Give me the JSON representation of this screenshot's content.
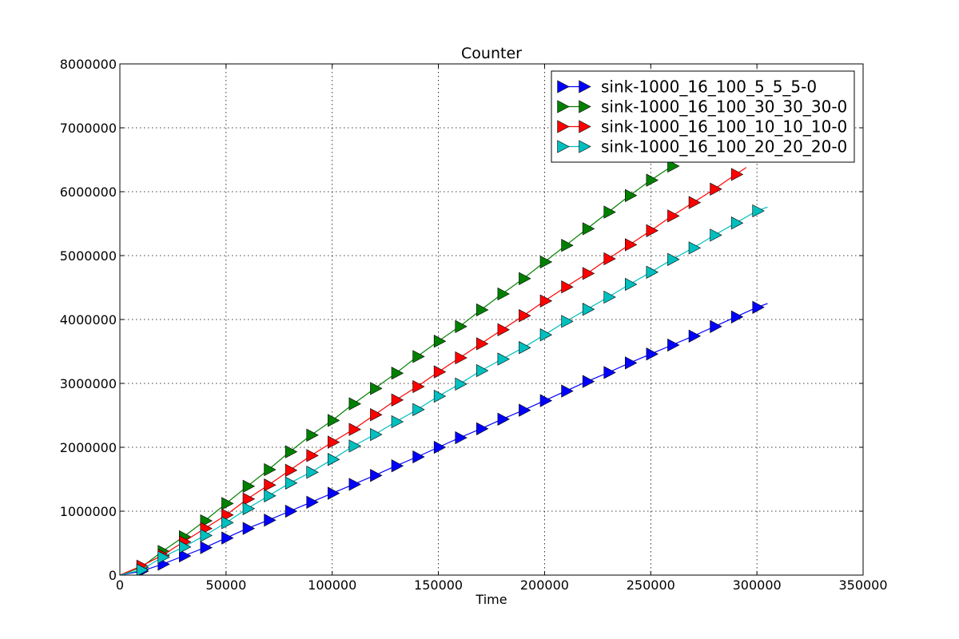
{
  "chart_data": {
    "type": "line",
    "title": "Counter",
    "xlabel": "Time",
    "ylabel": "",
    "xlim": [
      0,
      350000
    ],
    "ylim": [
      0,
      8000000
    ],
    "xticks": [
      0,
      50000,
      100000,
      150000,
      200000,
      250000,
      300000,
      350000
    ],
    "yticks": [
      0,
      1000000,
      2000000,
      3000000,
      4000000,
      5000000,
      6000000,
      7000000,
      8000000
    ],
    "grid": true,
    "legend_position": "top-right",
    "marker": "triangle-right",
    "series": [
      {
        "name": "sink-1000_16_100_5_5_5-0",
        "color": "#0000ff",
        "x": [
          0,
          10000,
          20000,
          30000,
          40000,
          50000,
          60000,
          70000,
          80000,
          90000,
          100000,
          110000,
          120000,
          130000,
          140000,
          150000,
          160000,
          170000,
          180000,
          190000,
          200000,
          210000,
          220000,
          230000,
          240000,
          250000,
          260000,
          270000,
          280000,
          290000,
          300000,
          305000
        ],
        "y": [
          0,
          60000,
          170000,
          300000,
          430000,
          580000,
          730000,
          860000,
          1000000,
          1140000,
          1280000,
          1420000,
          1560000,
          1710000,
          1850000,
          2000000,
          2150000,
          2290000,
          2440000,
          2580000,
          2730000,
          2880000,
          3030000,
          3170000,
          3320000,
          3460000,
          3600000,
          3740000,
          3890000,
          4040000,
          4190000,
          4250000
        ],
        "markers_from": 1
      },
      {
        "name": "sink-1000_16_100_30_30_30-0",
        "color": "#008000",
        "x": [
          0,
          10000,
          20000,
          30000,
          40000,
          50000,
          60000,
          70000,
          80000,
          90000,
          100000,
          110000,
          120000,
          130000,
          140000,
          150000,
          160000,
          170000,
          180000,
          190000,
          200000,
          210000,
          220000,
          230000,
          240000,
          250000,
          260000
        ],
        "y": [
          0,
          120000,
          370000,
          600000,
          850000,
          1120000,
          1390000,
          1650000,
          1930000,
          2190000,
          2420000,
          2680000,
          2920000,
          3160000,
          3420000,
          3660000,
          3890000,
          4150000,
          4400000,
          4640000,
          4900000,
          5160000,
          5420000,
          5680000,
          5940000,
          6180000,
          6400000
        ],
        "markers_from": 1
      },
      {
        "name": "sink-1000_16_100_10_10_10-0",
        "color": "#ff0000",
        "x": [
          0,
          10000,
          20000,
          30000,
          40000,
          50000,
          60000,
          70000,
          80000,
          90000,
          100000,
          110000,
          120000,
          130000,
          140000,
          150000,
          160000,
          170000,
          180000,
          190000,
          200000,
          210000,
          220000,
          230000,
          240000,
          250000,
          260000,
          270000,
          280000,
          290000,
          295000
        ],
        "y": [
          0,
          140000,
          310000,
          520000,
          730000,
          940000,
          1190000,
          1410000,
          1640000,
          1870000,
          2080000,
          2280000,
          2510000,
          2740000,
          2950000,
          3180000,
          3400000,
          3620000,
          3840000,
          4060000,
          4290000,
          4510000,
          4720000,
          4950000,
          5170000,
          5390000,
          5620000,
          5830000,
          6040000,
          6270000,
          6380000
        ],
        "markers_from": 1
      },
      {
        "name": "sink-1000_16_100_20_20_20-0",
        "color": "#00bfbf",
        "x": [
          0,
          10000,
          20000,
          30000,
          40000,
          50000,
          60000,
          70000,
          80000,
          90000,
          100000,
          110000,
          120000,
          130000,
          140000,
          150000,
          160000,
          170000,
          180000,
          190000,
          200000,
          210000,
          220000,
          230000,
          240000,
          250000,
          260000,
          270000,
          280000,
          290000,
          300000,
          305000
        ],
        "y": [
          0,
          80000,
          280000,
          440000,
          620000,
          820000,
          1040000,
          1240000,
          1440000,
          1610000,
          1810000,
          2020000,
          2200000,
          2400000,
          2590000,
          2800000,
          2990000,
          3200000,
          3380000,
          3560000,
          3760000,
          3970000,
          4160000,
          4350000,
          4550000,
          4740000,
          4940000,
          5120000,
          5320000,
          5510000,
          5700000,
          5760000
        ],
        "markers_from": 1
      }
    ]
  }
}
